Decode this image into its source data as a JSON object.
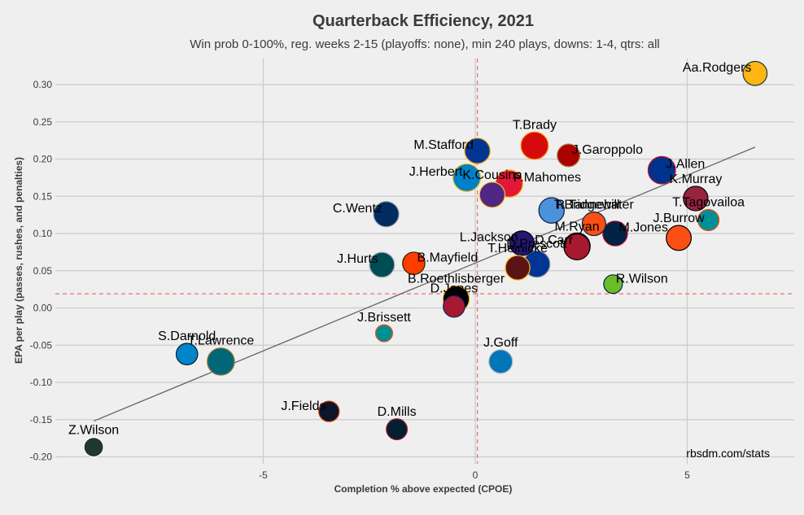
{
  "chart_data": {
    "type": "scatter",
    "title": "Quarterback Efficiency, 2021",
    "subtitle": "Win prob 0-100%, reg. weeks 2-15 (playoffs: none), min 240 plays, downs: 1-4, qtrs: all",
    "xlabel": "Completion % above expected (CPOE)",
    "ylabel": "EPA per play (passes, rushes, and penalties)",
    "xlim": [
      -9.6,
      7.6
    ],
    "ylim": [
      -0.205,
      0.34
    ],
    "x_ticks": [
      -5,
      0,
      5
    ],
    "y_ticks": [
      -0.2,
      -0.15,
      -0.1,
      -0.05,
      0.0,
      0.05,
      0.1,
      0.15,
      0.2,
      0.25,
      0.3
    ],
    "x_tick_labels": [
      "-5",
      "0",
      "5"
    ],
    "y_tick_labels": [
      "-0.20",
      "-0.15",
      "-0.10",
      "-0.05",
      "0.00",
      "0.05",
      "0.10",
      "0.15",
      "0.20",
      "0.25",
      "0.30"
    ],
    "mean_cpoe": 0.05,
    "mean_epa": 0.019,
    "trend_line": {
      "x": [
        -9.0,
        6.6
      ],
      "y": [
        -0.152,
        0.216
      ]
    },
    "credit": "rbsdm.com/stats",
    "points": [
      {
        "name": "Aa.Rodgers",
        "x": 6.6,
        "y": 0.315,
        "color": "#FFB612",
        "edge": "#203731",
        "plays": 500,
        "label_anchor": "end"
      },
      {
        "name": "T.Brady",
        "x": 1.4,
        "y": 0.218,
        "color": "#D50A0A",
        "edge": "#FF7900",
        "plays": 640,
        "label_anchor": "middle"
      },
      {
        "name": "J.Garoppolo",
        "x": 2.2,
        "y": 0.205,
        "color": "#AA0000",
        "edge": "#B3995D",
        "plays": 450,
        "label_anchor": "start"
      },
      {
        "name": "M.Stafford",
        "x": 0.05,
        "y": 0.211,
        "color": "#003594",
        "edge": "#FFA300",
        "plays": 560,
        "label_anchor": "end"
      },
      {
        "name": "J.Allen",
        "x": 4.4,
        "y": 0.185,
        "color": "#00338D",
        "edge": "#C60C30",
        "plays": 650,
        "label_anchor": "start"
      },
      {
        "name": "P.Mahomes",
        "x": 0.8,
        "y": 0.167,
        "color": "#E31837",
        "edge": "#FFB81C",
        "plays": 640,
        "label_anchor": "start"
      },
      {
        "name": "J.Herbert",
        "x": -0.2,
        "y": 0.175,
        "color": "#0080C6",
        "edge": "#FFC20E",
        "plays": 660,
        "label_anchor": "end"
      },
      {
        "name": "R.Tannehill",
        "x": 1.8,
        "y": 0.131,
        "color": "#4B92DB",
        "edge": "#0C2340",
        "plays": 560,
        "label_anchor": "start"
      },
      {
        "name": "K.Cousins",
        "x": 0.4,
        "y": 0.152,
        "color": "#4F2683",
        "edge": "#FFC62F",
        "plays": 560,
        "label_anchor": "middle"
      },
      {
        "name": "K.Murray",
        "x": 5.2,
        "y": 0.147,
        "color": "#97233F",
        "edge": "#000000",
        "plays": 520,
        "label_anchor": "middle"
      },
      {
        "name": "T.Tagovailoa",
        "x": 5.5,
        "y": 0.118,
        "color": "#008E97",
        "edge": "#FC4C02",
        "plays": 390,
        "label_anchor": "middle"
      },
      {
        "name": "T.Bridgewater",
        "x": 2.8,
        "y": 0.113,
        "color": "#FB4F14",
        "edge": "#002244",
        "plays": 480,
        "label_anchor": "middle"
      },
      {
        "name": "C.Wentz",
        "x": -2.1,
        "y": 0.126,
        "color": "#002C5F",
        "edge": "#A2AAAD",
        "plays": 560,
        "label_anchor": "end"
      },
      {
        "name": "M.Jones",
        "x": 3.3,
        "y": 0.1,
        "color": "#002244",
        "edge": "#C60C30",
        "plays": 530,
        "label_anchor": "start"
      },
      {
        "name": "J.Burrow",
        "x": 4.8,
        "y": 0.094,
        "color": "#FB4F14",
        "edge": "#000000",
        "plays": 540,
        "label_anchor": "middle"
      },
      {
        "name": "L.Jackson",
        "x": 1.1,
        "y": 0.087,
        "color": "#241773",
        "edge": "#000000",
        "plays": 520,
        "label_anchor": "end"
      },
      {
        "name": "D.Carr",
        "x": 2.4,
        "y": 0.083,
        "color": "#A5ACAF",
        "edge": "#000000",
        "plays": 600,
        "label_anchor": "end"
      },
      {
        "name": "M.Ryan",
        "x": 2.4,
        "y": 0.082,
        "color": "#A71930",
        "edge": "#000000",
        "plays": 580,
        "label_anchor": "middle"
      },
      {
        "name": "D.Prescott",
        "x": 1.45,
        "y": 0.059,
        "color": "#003594",
        "edge": "#869397",
        "plays": 600,
        "label_anchor": "middle"
      },
      {
        "name": "T.Heinicke",
        "x": 1.0,
        "y": 0.054,
        "color": "#5A1414",
        "edge": "#FFB612",
        "plays": 520,
        "label_anchor": "middle"
      },
      {
        "name": "R.Wilson",
        "x": 3.25,
        "y": 0.032,
        "color": "#69BE28",
        "edge": "#002244",
        "plays": 300,
        "label_anchor": "start"
      },
      {
        "name": "B.Mayfield",
        "x": -1.45,
        "y": 0.06,
        "color": "#FF3C00",
        "edge": "#311D00",
        "plays": 430,
        "label_anchor": "start"
      },
      {
        "name": "J.Hurts",
        "x": -2.2,
        "y": 0.058,
        "color": "#004C54",
        "edge": "#A5ACAF",
        "plays": 540,
        "label_anchor": "end"
      },
      {
        "name": "B.Roethlisberger",
        "x": -0.45,
        "y": 0.012,
        "color": "#000000",
        "edge": "#FFB612",
        "plays": 600,
        "label_anchor": "middle"
      },
      {
        "name": "D.Jones",
        "x": -0.5,
        "y": 0.002,
        "color": "#A71930",
        "edge": "#0B2265",
        "plays": 400,
        "label_anchor": "middle"
      },
      {
        "name": "J.Brissett",
        "x": -2.15,
        "y": -0.034,
        "color": "#008E97",
        "edge": "#FC4C02",
        "plays": 250,
        "label_anchor": "middle"
      },
      {
        "name": "S.Darnold",
        "x": -6.8,
        "y": -0.062,
        "color": "#0085CA",
        "edge": "#101820",
        "plays": 400,
        "label_anchor": "middle"
      },
      {
        "name": "T.Lawrence",
        "x": -6.0,
        "y": -0.072,
        "color": "#006778",
        "edge": "#9F792C",
        "plays": 640,
        "label_anchor": "middle"
      },
      {
        "name": "J.Goff",
        "x": 0.6,
        "y": -0.072,
        "color": "#0076B6",
        "edge": "#B0B7BC",
        "plays": 480,
        "label_anchor": "middle"
      },
      {
        "name": "J.Fields",
        "x": -3.45,
        "y": -0.139,
        "color": "#0B162A",
        "edge": "#C83803",
        "plays": 360,
        "label_anchor": "end"
      },
      {
        "name": "D.Mills",
        "x": -1.85,
        "y": -0.163,
        "color": "#03202F",
        "edge": "#A71930",
        "plays": 380,
        "label_anchor": "middle"
      },
      {
        "name": "Z.Wilson",
        "x": -9.0,
        "y": -0.187,
        "color": "#203731",
        "edge": "#FFFFFF",
        "plays": 330,
        "label_anchor": "middle"
      }
    ]
  }
}
